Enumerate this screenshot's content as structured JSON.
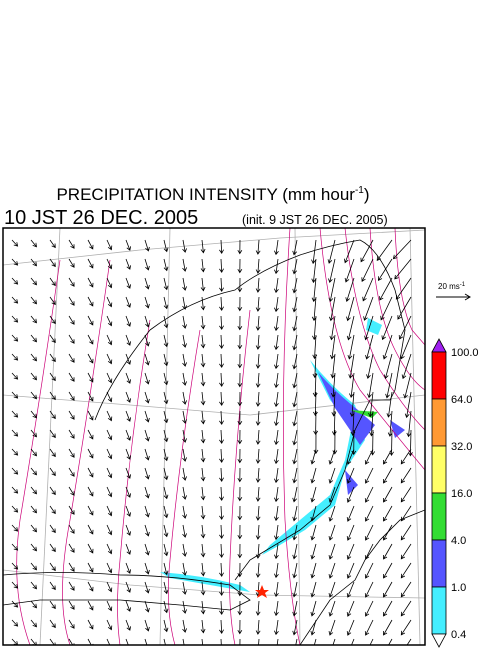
{
  "title": {
    "text": "PRECIPITATION INTENSITY (mm hour",
    "superscript": "-1",
    "suffix": ")"
  },
  "valid_time": "10 JST 26 DEC. 2005",
  "init_time": "(init. 9 JST 26 DEC. 2005)",
  "vector_legend": {
    "text": "20 ms",
    "superscript": "-1"
  },
  "colorbar": {
    "labels": [
      "100.0",
      "64.0",
      "32.0",
      "16.0",
      "4.0",
      "1.0",
      "0.4"
    ],
    "over_color": "#a020f0",
    "colors": [
      "#ff0000",
      "#ff9933",
      "#ffff66",
      "#33dd33",
      "#5555ff",
      "#44eeff"
    ],
    "under_color": "#ffffff"
  }
}
